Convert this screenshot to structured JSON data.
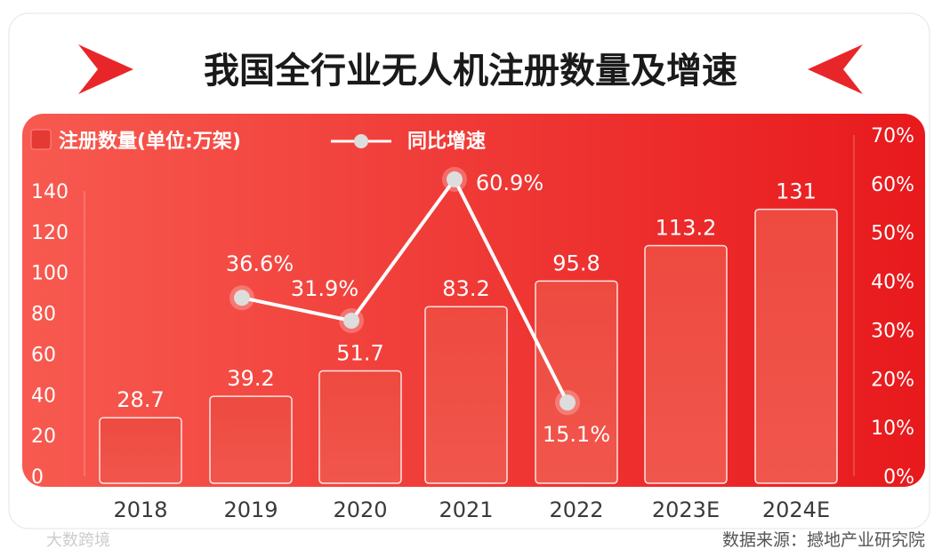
{
  "title": "我国全行业无人机注册数量及增速",
  "source": "数据来源：撼地产业研究院",
  "watermark": "大数跨境",
  "colors": {
    "panel_start": "#f75a50",
    "panel_end": "#e8191c",
    "accent": "#e8262a",
    "text_dark": "#3a3a3a"
  },
  "chart_data": {
    "type": "bar+line",
    "title": "我国全行业无人机注册数量及增速",
    "categories": [
      "2018",
      "2019",
      "2020",
      "2021",
      "2022",
      "2023E",
      "2024E"
    ],
    "series": [
      {
        "name": "注册数量(单位:万架)",
        "type": "bar",
        "axis": "left",
        "values": [
          28.7,
          39.2,
          51.7,
          83.2,
          95.8,
          113.2,
          131
        ],
        "labels": [
          "28.7",
          "39.2",
          "51.7",
          "83.2",
          "95.8",
          "113.2",
          "131"
        ]
      },
      {
        "name": "同比增速",
        "type": "line",
        "axis": "right",
        "values": [
          null,
          36.6,
          31.9,
          60.9,
          15.1,
          null,
          null
        ],
        "labels": [
          "",
          "36.6%",
          "31.9%",
          "60.9%",
          "15.1%",
          "",
          ""
        ]
      }
    ],
    "y_left": {
      "range": [
        0,
        140
      ],
      "ticks": [
        "0",
        "20",
        "40",
        "60",
        "80",
        "100",
        "120",
        "140"
      ]
    },
    "y_right": {
      "range": [
        0,
        70
      ],
      "ticks": [
        "0%",
        "10%",
        "20%",
        "30%",
        "40%",
        "50%",
        "60%",
        "70%"
      ]
    },
    "legend": {
      "position": "top-left",
      "items": [
        "注册数量(单位:万架)",
        "同比增速"
      ]
    },
    "grid": false
  }
}
